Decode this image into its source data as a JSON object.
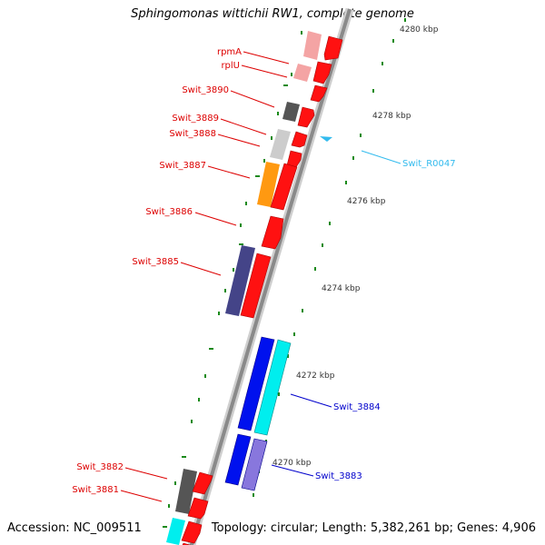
{
  "title": "Sphingomonas wittichii RW1, complete genome",
  "footer": {
    "accession": "Accession: NC_009511",
    "summary": "Topology: circular; Length: 5,382,261 bp; Genes: 4,906"
  },
  "colors": {
    "forward_label": "#dd0000",
    "reverse_label": "#0000cc",
    "rna_label": "#33bbee",
    "ruler": "#1a8a1a",
    "backbone": "#888888"
  },
  "ruler_labels": [
    "4280 kbp",
    "4278 kbp",
    "4276 kbp",
    "4274 kbp",
    "4272 kbp",
    "4270 kbp"
  ],
  "gene_labels": [
    "rpmA",
    "rplU",
    "Swit_3890",
    "Swit_3889",
    "Swit_3888",
    "Swit_3887",
    "Swit_3886",
    "Swit_3885",
    "Swit_3884",
    "Swit_3883",
    "Swit_R0047",
    "Swit_3882",
    "Swit_3881"
  ]
}
